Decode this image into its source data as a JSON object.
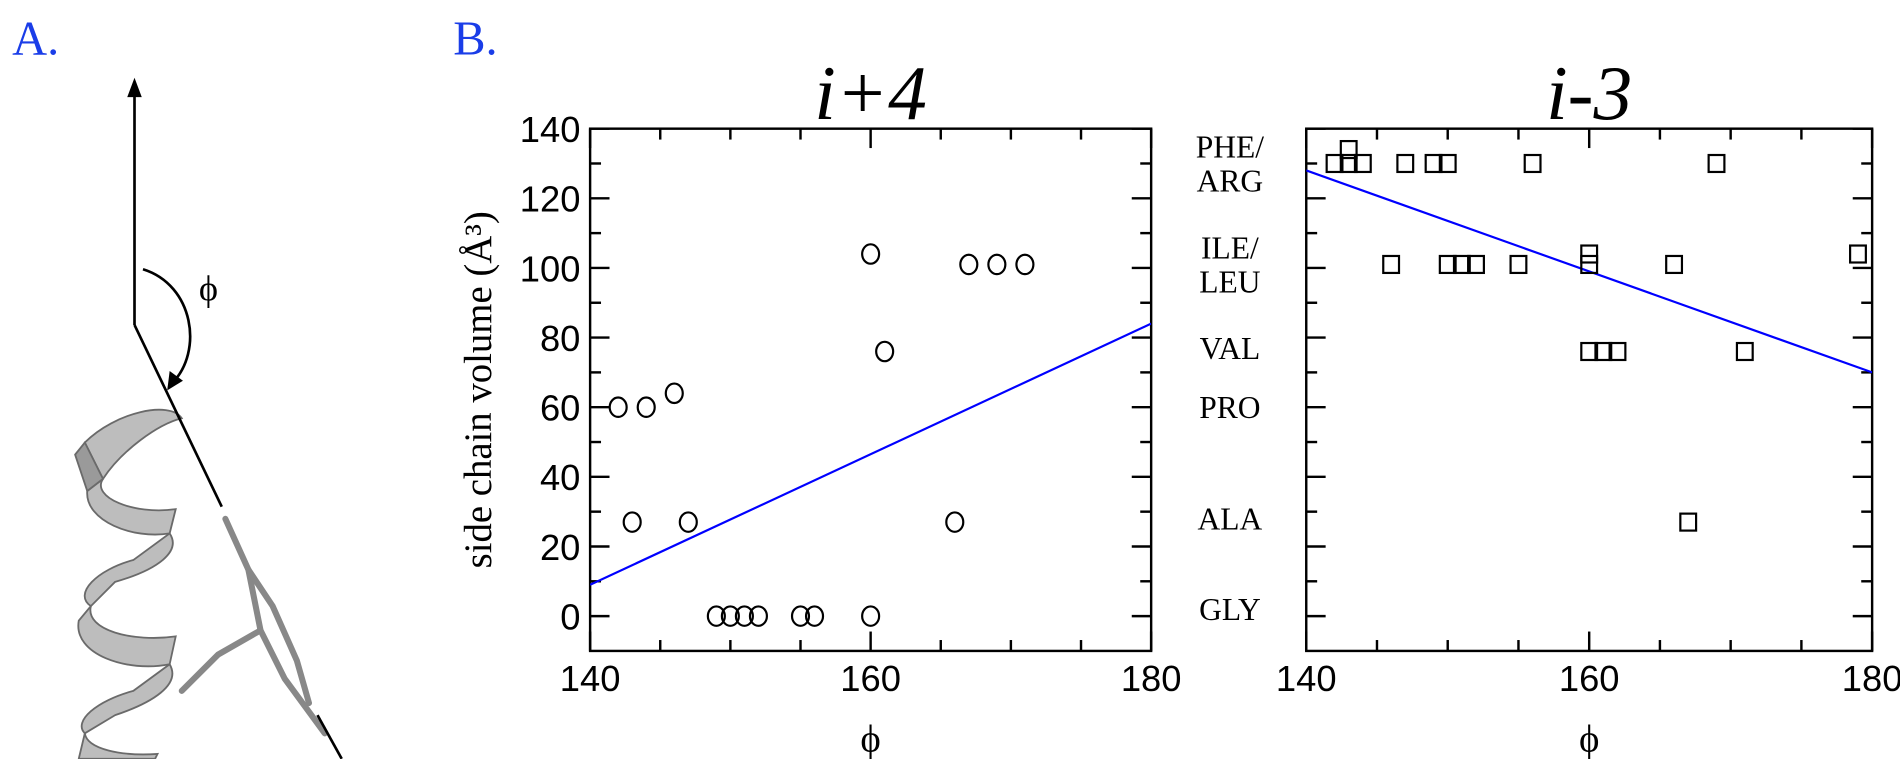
{
  "figure": {
    "panel_a_label": "A.",
    "panel_b_label": "B.",
    "angle_label": "ϕ"
  },
  "chart_data": [
    {
      "type": "scatter",
      "title": "i+4",
      "xlabel": "ϕ",
      "ylabel": "side chain volume (Å³)",
      "xlim": [
        140,
        180
      ],
      "ylim": [
        -10,
        140
      ],
      "xticks": [
        140,
        160,
        180
      ],
      "yticks": [
        0,
        20,
        40,
        60,
        80,
        100,
        120,
        140
      ],
      "xminor": [
        145,
        150,
        155,
        165,
        170,
        175
      ],
      "yminor": [
        10,
        30,
        50,
        70,
        90,
        110,
        130
      ],
      "ytick_labels": true,
      "series": [
        {
          "marker": "circle",
          "color": "#000000",
          "x": [
            142,
            144,
            146,
            143,
            147,
            149,
            150,
            151,
            152,
            155,
            156,
            160,
            160,
            161,
            167,
            169,
            171,
            166
          ],
          "values": [
            60,
            60,
            64,
            27,
            27,
            0,
            0,
            0,
            0,
            0,
            0,
            0,
            104,
            76,
            101,
            101,
            101,
            27
          ]
        }
      ],
      "fit": {
        "color": "#0000ff",
        "x": [
          140,
          180
        ],
        "values": [
          9,
          84
        ]
      }
    },
    {
      "type": "scatter",
      "title": "i-3",
      "xlabel": "ϕ",
      "xlim": [
        140,
        180
      ],
      "ylim": [
        -10,
        140
      ],
      "xticks": [
        140,
        160,
        180
      ],
      "yticks": [
        0,
        20,
        40,
        60,
        80,
        100,
        120,
        140
      ],
      "xminor": [
        145,
        150,
        155,
        165,
        170,
        175
      ],
      "yminor": [
        10,
        30,
        50,
        70,
        90,
        110,
        130
      ],
      "ytick_labels": false,
      "y_annotations": [
        {
          "value": 130,
          "lines": [
            "PHE/",
            "ARG"
          ]
        },
        {
          "value": 101,
          "lines": [
            "ILE/",
            "LEU"
          ]
        },
        {
          "value": 77,
          "lines": [
            "VAL"
          ]
        },
        {
          "value": 60,
          "lines": [
            "PRO"
          ]
        },
        {
          "value": 28,
          "lines": [
            "ALA"
          ]
        },
        {
          "value": 2,
          "lines": [
            "GLY"
          ]
        }
      ],
      "series": [
        {
          "marker": "square",
          "color": "#000000",
          "x": [
            142,
            143,
            143,
            144,
            147,
            149,
            150,
            156,
            169,
            146,
            150,
            151,
            152,
            155,
            160,
            160,
            166,
            179,
            160,
            161,
            162,
            171,
            167
          ],
          "values": [
            130,
            130,
            134,
            130,
            130,
            130,
            130,
            130,
            130,
            101,
            101,
            101,
            101,
            101,
            104,
            101,
            101,
            104,
            76,
            76,
            76,
            76,
            27
          ]
        }
      ],
      "fit": {
        "color": "#0000ff",
        "x": [
          140,
          180
        ],
        "values": [
          128,
          70
        ]
      }
    }
  ]
}
